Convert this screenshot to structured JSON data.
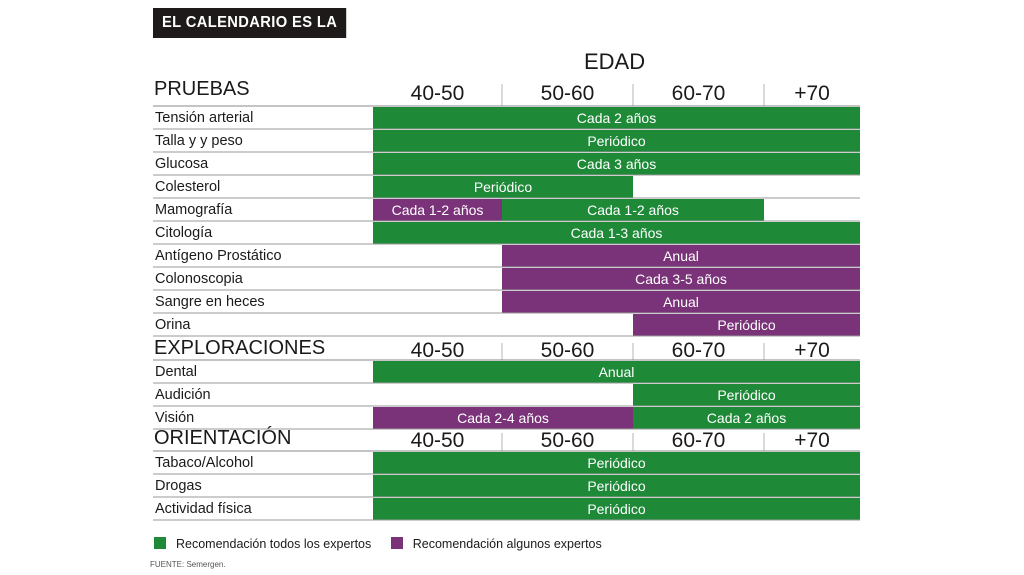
{
  "title": "EL CALENDARIO ES LA PISTA",
  "edad_label": "EDAD",
  "colors": {
    "todos": "#1e8a38",
    "algunos": "#7a3278",
    "grid": "#9a9a9a",
    "title_bg": "#1e1a19"
  },
  "chart_data": {
    "type": "table",
    "title": "EL CALENDARIO ES LA PISTA",
    "column_header": "EDAD",
    "age_groups": [
      "40-50",
      "50-60",
      "60-70",
      "+70"
    ],
    "legend": [
      {
        "key": "todos",
        "label": "Recomendación todos los expertos",
        "color": "#1e8a38"
      },
      {
        "key": "algunos",
        "label": "Recomendación algunos expertos",
        "color": "#7a3278"
      }
    ],
    "sections": [
      {
        "name": "PRUEBAS",
        "rows": [
          {
            "label": "Tensión arterial",
            "bars": [
              {
                "from": 0,
                "to": 4,
                "text": "Cada 2 años",
                "type": "todos"
              }
            ]
          },
          {
            "label": "Talla y y peso",
            "bars": [
              {
                "from": 0,
                "to": 4,
                "text": "Periódico",
                "type": "todos"
              }
            ]
          },
          {
            "label": "Glucosa",
            "bars": [
              {
                "from": 0,
                "to": 4,
                "text": "Cada 3 años",
                "type": "todos"
              }
            ]
          },
          {
            "label": "Colesterol",
            "bars": [
              {
                "from": 0,
                "to": 2,
                "text": "Periódico",
                "type": "todos"
              }
            ]
          },
          {
            "label": "Mamografía",
            "bars": [
              {
                "from": 0,
                "to": 1,
                "text": "Cada 1-2 años",
                "type": "algunos"
              },
              {
                "from": 1,
                "to": 3,
                "text": "Cada 1-2 años",
                "type": "todos"
              }
            ]
          },
          {
            "label": "Citología",
            "bars": [
              {
                "from": 0,
                "to": 4,
                "text": "Cada 1-3 años",
                "type": "todos"
              }
            ]
          },
          {
            "label": "Antígeno Prostático",
            "bars": [
              {
                "from": 1,
                "to": 4,
                "text": "Anual",
                "type": "algunos"
              }
            ]
          },
          {
            "label": "Colonoscopia",
            "bars": [
              {
                "from": 1,
                "to": 4,
                "text": "Cada 3-5 años",
                "type": "algunos"
              }
            ]
          },
          {
            "label": "Sangre en heces",
            "bars": [
              {
                "from": 1,
                "to": 4,
                "text": "Anual",
                "type": "algunos"
              }
            ]
          },
          {
            "label": "Orina",
            "bars": [
              {
                "from": 2,
                "to": 4,
                "text": "Periódico",
                "type": "algunos"
              }
            ]
          }
        ]
      },
      {
        "name": "EXPLORACIONES",
        "rows": [
          {
            "label": "Dental",
            "bars": [
              {
                "from": 0,
                "to": 4,
                "text": "Anual",
                "type": "todos"
              }
            ]
          },
          {
            "label": "Audición",
            "bars": [
              {
                "from": 2,
                "to": 4,
                "text": "Periódico",
                "type": "todos"
              }
            ]
          },
          {
            "label": "Visión",
            "bars": [
              {
                "from": 0,
                "to": 2,
                "text": "Cada 2-4 años",
                "type": "algunos"
              },
              {
                "from": 2,
                "to": 4,
                "text": "Cada 2 años",
                "type": "todos"
              }
            ]
          }
        ]
      },
      {
        "name": "ORIENTACIÓN",
        "rows": [
          {
            "label": "Tabaco/Alcohol",
            "bars": [
              {
                "from": 0,
                "to": 4,
                "text": "Periódico",
                "type": "todos"
              }
            ]
          },
          {
            "label": "Drogas",
            "bars": [
              {
                "from": 0,
                "to": 4,
                "text": "Periódico",
                "type": "todos"
              }
            ]
          },
          {
            "label": "Actividad  física",
            "bars": [
              {
                "from": 0,
                "to": 4,
                "text": "Periódico",
                "type": "todos"
              }
            ]
          }
        ]
      }
    ]
  },
  "legend": {
    "todos": "Recomendación todos los expertos",
    "algunos": "Recomendación algunos expertos"
  },
  "source": "FUENTE: Semergen."
}
